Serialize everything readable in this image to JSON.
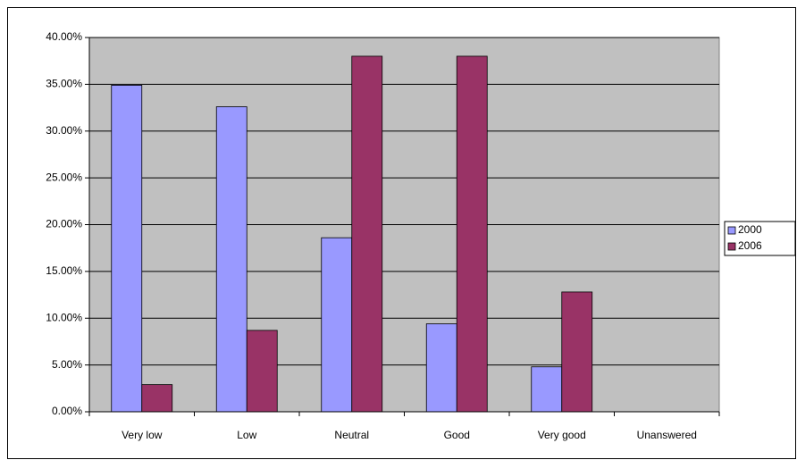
{
  "chart_data": {
    "type": "bar",
    "categories": [
      "Very low",
      "Low",
      "Neutral",
      "Good",
      "Very good",
      "Unanswered"
    ],
    "series": [
      {
        "name": "2000",
        "color": "#9999ff",
        "values": [
          34.9,
          32.6,
          18.6,
          9.4,
          4.8,
          0
        ]
      },
      {
        "name": "2006",
        "color": "#993366",
        "values": [
          2.9,
          8.7,
          38.0,
          38.0,
          12.8,
          0
        ]
      }
    ],
    "ylim": [
      0,
      40
    ],
    "yticks": [
      {
        "value": 0,
        "label": "0.00%"
      },
      {
        "value": 5,
        "label": "5.00%"
      },
      {
        "value": 10,
        "label": "10.00%"
      },
      {
        "value": 15,
        "label": "15.00%"
      },
      {
        "value": 20,
        "label": "20.00%"
      },
      {
        "value": 25,
        "label": "25.00%"
      },
      {
        "value": 30,
        "label": "30.00%"
      },
      {
        "value": 35,
        "label": "35.00%"
      },
      {
        "value": 40,
        "label": "40.00%"
      }
    ],
    "grid": true,
    "legend": "right",
    "plot_background": "#c0c0c0"
  }
}
